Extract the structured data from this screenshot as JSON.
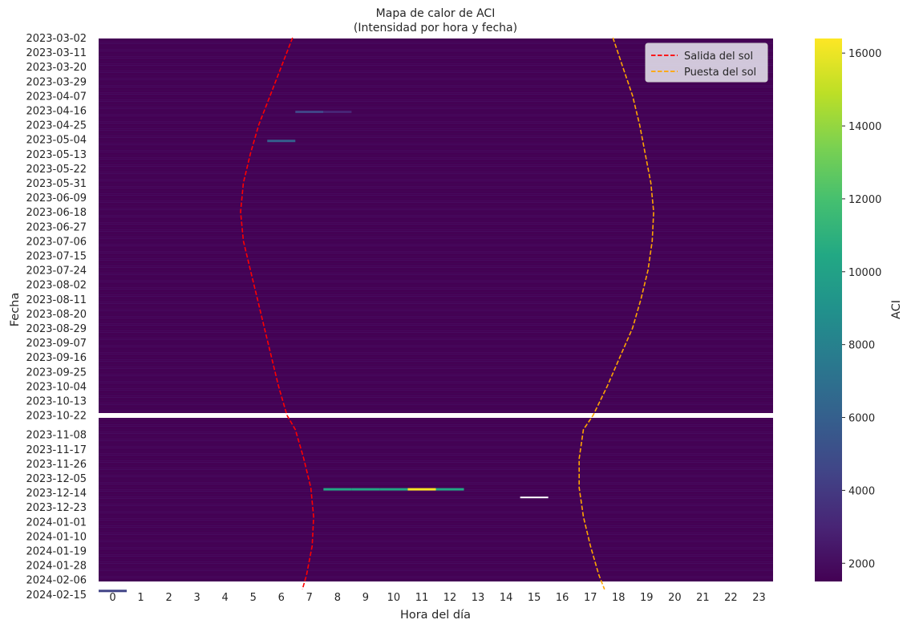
{
  "chart_data": {
    "type": "heatmap",
    "title": "Mapa de calor de ACI",
    "subtitle": "(Intensidad por hora y fecha)",
    "xlabel": "Hora del día",
    "ylabel": "Fecha",
    "x": [
      0,
      1,
      2,
      3,
      4,
      5,
      6,
      7,
      8,
      9,
      10,
      11,
      12,
      13,
      14,
      15,
      16,
      17,
      18,
      19,
      20,
      21,
      22,
      23
    ],
    "y_ticks": [
      "2023-03-02",
      "2023-03-11",
      "2023-03-20",
      "2023-03-29",
      "2023-04-07",
      "2023-04-16",
      "2023-04-25",
      "2023-05-04",
      "2023-05-13",
      "2023-05-22",
      "2023-05-31",
      "2023-06-09",
      "2023-06-18",
      "2023-06-27",
      "2023-07-06",
      "2023-07-15",
      "2023-07-24",
      "2023-08-02",
      "2023-08-11",
      "2023-08-20",
      "2023-08-29",
      "2023-09-07",
      "2023-09-16",
      "2023-09-25",
      "2023-10-04",
      "2023-10-13",
      "2023-10-22",
      "2023-11-08",
      "2023-11-17",
      "2023-11-26",
      "2023-12-05",
      "2023-12-14",
      "2023-12-23",
      "2024-01-01",
      "2024-01-10",
      "2024-01-19",
      "2024-01-28",
      "2024-02-06",
      "2024-02-15"
    ],
    "colorbar": {
      "label": "ACI",
      "colormap": "viridis",
      "range": [
        1500,
        16400
      ],
      "ticks": [
        2000,
        4000,
        6000,
        8000,
        10000,
        12000,
        14000,
        16000
      ]
    },
    "background_value": 2000,
    "highlights": [
      {
        "date": "2023-04-16",
        "hour": 7,
        "value": 4500
      },
      {
        "date": "2023-04-16",
        "hour": 8,
        "value": 3500
      },
      {
        "date": "2023-05-04",
        "hour": 6,
        "value": 5300
      },
      {
        "date": "2023-12-14",
        "hour": 8,
        "value": 10000
      },
      {
        "date": "2023-12-14",
        "hour": 9,
        "value": 10000
      },
      {
        "date": "2023-12-14",
        "hour": 10,
        "value": 10000
      },
      {
        "date": "2023-12-14",
        "hour": 11,
        "value": 16400
      },
      {
        "date": "2023-12-14",
        "hour": 12,
        "value": 10000
      },
      {
        "date": "2024-02-15",
        "hour": 0,
        "value": 4000
      }
    ],
    "series": [
      {
        "name": "Salida del sol",
        "color": "#ff0000",
        "style": "dashed",
        "points": [
          {
            "date": "2023-03-02",
            "hour": 6.4
          },
          {
            "date": "2023-03-20",
            "hour": 6.0
          },
          {
            "date": "2023-04-07",
            "hour": 5.6
          },
          {
            "date": "2023-04-25",
            "hour": 5.2
          },
          {
            "date": "2023-05-13",
            "hour": 4.9
          },
          {
            "date": "2023-05-31",
            "hour": 4.65
          },
          {
            "date": "2023-06-18",
            "hour": 4.55
          },
          {
            "date": "2023-07-06",
            "hour": 4.65
          },
          {
            "date": "2023-07-24",
            "hour": 4.9
          },
          {
            "date": "2023-08-11",
            "hour": 5.15
          },
          {
            "date": "2023-08-29",
            "hour": 5.4
          },
          {
            "date": "2023-09-16",
            "hour": 5.65
          },
          {
            "date": "2023-10-04",
            "hour": 5.9
          },
          {
            "date": "2023-10-22",
            "hour": 6.2
          },
          {
            "date": "2023-11-08",
            "hour": 6.5
          },
          {
            "date": "2023-11-26",
            "hour": 6.8
          },
          {
            "date": "2023-12-14",
            "hour": 7.05
          },
          {
            "date": "2024-01-01",
            "hour": 7.15
          },
          {
            "date": "2024-01-19",
            "hour": 7.1
          },
          {
            "date": "2024-02-06",
            "hour": 6.9
          },
          {
            "date": "2024-02-15",
            "hour": 6.75
          }
        ]
      },
      {
        "name": "Puesta del sol",
        "color": "#ffa500",
        "style": "dashed",
        "points": [
          {
            "date": "2023-03-02",
            "hour": 17.8
          },
          {
            "date": "2023-03-20",
            "hour": 18.15
          },
          {
            "date": "2023-04-07",
            "hour": 18.5
          },
          {
            "date": "2023-04-25",
            "hour": 18.75
          },
          {
            "date": "2023-05-13",
            "hour": 18.95
          },
          {
            "date": "2023-05-31",
            "hour": 19.15
          },
          {
            "date": "2023-06-18",
            "hour": 19.25
          },
          {
            "date": "2023-07-06",
            "hour": 19.2
          },
          {
            "date": "2023-07-24",
            "hour": 19.05
          },
          {
            "date": "2023-08-11",
            "hour": 18.8
          },
          {
            "date": "2023-08-29",
            "hour": 18.5
          },
          {
            "date": "2023-09-16",
            "hour": 18.05
          },
          {
            "date": "2023-10-04",
            "hour": 17.6
          },
          {
            "date": "2023-10-22",
            "hour": 17.1
          },
          {
            "date": "2023-11-08",
            "hour": 16.75
          },
          {
            "date": "2023-11-26",
            "hour": 16.6
          },
          {
            "date": "2023-12-14",
            "hour": 16.6
          },
          {
            "date": "2024-01-01",
            "hour": 16.75
          },
          {
            "date": "2024-01-19",
            "hour": 17.0
          },
          {
            "date": "2024-02-06",
            "hour": 17.3
          },
          {
            "date": "2024-02-15",
            "hour": 17.5
          }
        ]
      }
    ],
    "legend": {
      "position": "top-right"
    }
  }
}
